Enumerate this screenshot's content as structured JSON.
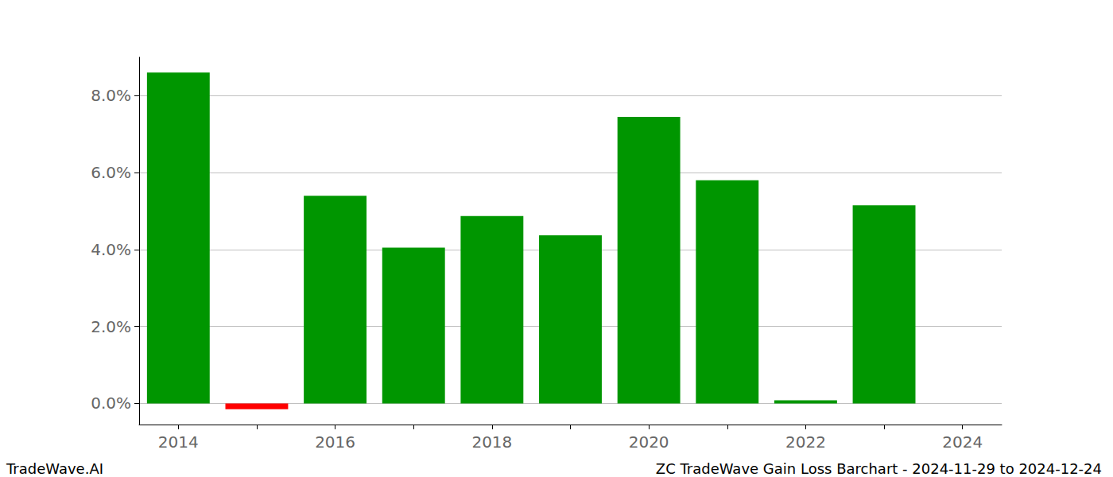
{
  "chart_data": {
    "type": "bar",
    "title": "ZC TradeWave Gain Loss Barchart - 2024-11-29 to 2024-12-24",
    "annotations": [
      "TradeWave.AI"
    ],
    "categories": [
      "2014",
      null,
      "2016",
      null,
      "2018",
      null,
      "2020",
      null,
      "2022",
      null,
      "2024"
    ],
    "values": [
      8.6,
      -0.15,
      5.4,
      4.05,
      4.87,
      4.37,
      7.45,
      5.8,
      0.08,
      5.15,
      null
    ],
    "colors": [
      "#009600",
      "#ff0000",
      "#009600",
      "#009600",
      "#009600",
      "#009600",
      "#009600",
      "#009600",
      "#009600",
      "#009600",
      "#009600"
    ],
    "ylim": [
      -0.55,
      9.0
    ],
    "yticks": [
      {
        "value": 0,
        "label": "0.0%"
      },
      {
        "value": 2,
        "label": "2.0%"
      },
      {
        "value": 4,
        "label": "4.0%"
      },
      {
        "value": 6,
        "label": "6.0%"
      },
      {
        "value": 8,
        "label": "8.0%"
      }
    ],
    "grid": true
  }
}
